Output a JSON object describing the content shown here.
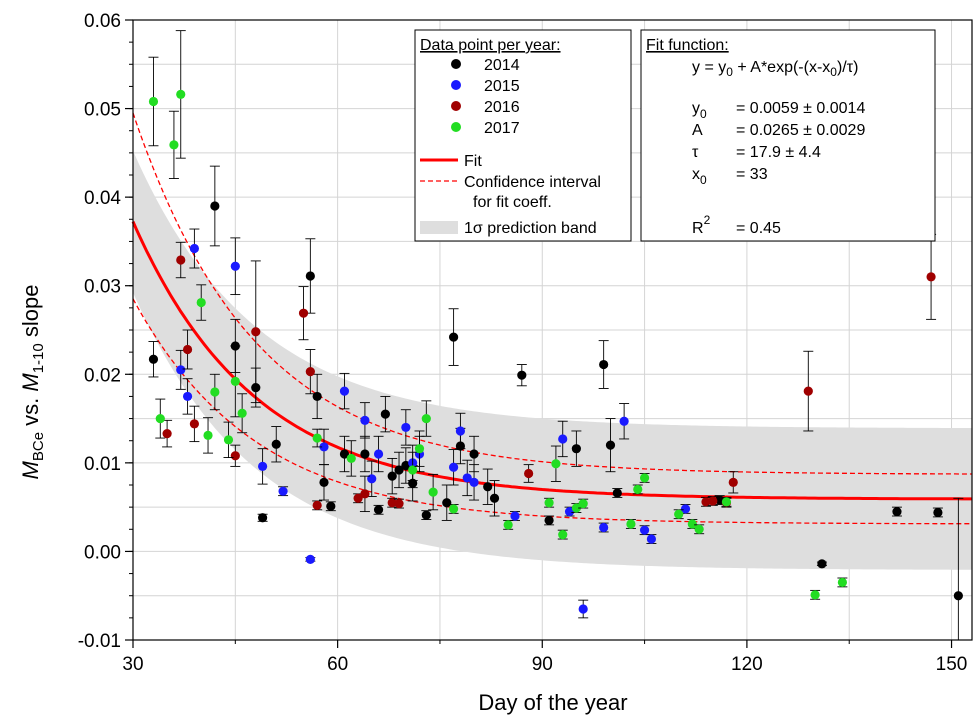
{
  "chart_data": {
    "type": "scatter",
    "xlabel": "Day of the year",
    "ylabel_parts": {
      "m1": "M",
      "sub1": "BCe",
      "vs": " vs. ",
      "m2": "M",
      "sub2": "1-10",
      "rest": " slope"
    },
    "xlim": [
      30,
      153
    ],
    "ylim": [
      -0.01,
      0.06
    ],
    "xticks": [
      30,
      60,
      90,
      120,
      150
    ],
    "xtick_labels": [
      "30",
      "60",
      "90",
      "120",
      "150"
    ],
    "yticks": [
      -0.01,
      0.0,
      0.01,
      0.02,
      0.03,
      0.04,
      0.05,
      0.06
    ],
    "ytick_labels": [
      "-0.01",
      "0.00",
      "0.01",
      "0.02",
      "0.03",
      "0.04",
      "0.05",
      "0.06"
    ],
    "grid": true,
    "colors": {
      "2014": "#000000",
      "2015": "#1a1aff",
      "2016": "#a00000",
      "2017": "#22dd22",
      "fit": "#ff0000",
      "band": "#dedede"
    },
    "fit": {
      "y0": 0.0059,
      "A": 0.0265,
      "tau": 17.9,
      "x0": 33
    },
    "confidence_band": {
      "upper_y0": 0.0087,
      "upper_A": 0.0345,
      "lower_y0": 0.0031,
      "lower_A": 0.0215
    },
    "prediction_band": {
      "halfwidth": 0.008
    },
    "series": [
      {
        "name": "2014",
        "points": [
          [
            33,
            0.0217,
            0.002
          ],
          [
            42,
            0.039,
            0.0045
          ],
          [
            45,
            0.0232,
            0.003
          ],
          [
            48,
            0.0185,
            0.0022
          ],
          [
            49,
            0.0038,
            0.0004
          ],
          [
            51,
            0.0121,
            0.002
          ],
          [
            56,
            0.0311,
            0.0042
          ],
          [
            57,
            0.0175,
            0.0025
          ],
          [
            58,
            0.0078,
            0.002
          ],
          [
            59,
            0.0051,
            0.0005
          ],
          [
            61,
            0.011,
            0.002
          ],
          [
            64,
            0.011,
            0.002
          ],
          [
            66,
            0.0047,
            0.0005
          ],
          [
            67,
            0.0155,
            0.002
          ],
          [
            68,
            0.0085,
            0.002
          ],
          [
            69,
            0.0092,
            0.002
          ],
          [
            70,
            0.0097,
            0.002
          ],
          [
            71,
            0.0077,
            0.002
          ],
          [
            73,
            0.0041,
            0.0005
          ],
          [
            76,
            0.0055,
            0.002
          ],
          [
            77,
            0.0242,
            0.0032
          ],
          [
            78,
            0.0119,
            0.002
          ],
          [
            80,
            0.011,
            0.002
          ],
          [
            82,
            0.0073,
            0.002
          ],
          [
            83,
            0.006,
            0.002
          ],
          [
            87,
            0.0199,
            0.0012
          ],
          [
            91,
            0.0035,
            0.0005
          ],
          [
            95,
            0.0116,
            0.002
          ],
          [
            99,
            0.0211,
            0.0027
          ],
          [
            100,
            0.012,
            0.003
          ],
          [
            101,
            0.0066,
            0.0005
          ],
          [
            116,
            0.0058,
            0.0005
          ],
          [
            131,
            -0.0014,
            0.0002
          ],
          [
            142,
            0.0045,
            0.0005
          ],
          [
            148,
            0.0044,
            0.0005
          ],
          [
            151,
            -0.005,
            0.011
          ]
        ]
      },
      {
        "name": "2015",
        "points": [
          [
            37,
            0.0205,
            0.0022
          ],
          [
            38,
            0.0175,
            0.002
          ],
          [
            39,
            0.0342,
            0.0022
          ],
          [
            45,
            0.0322,
            0.0032
          ],
          [
            49,
            0.0096,
            0.002
          ],
          [
            52,
            0.0068,
            0.0005
          ],
          [
            56,
            -0.0009,
            0.0002
          ],
          [
            58,
            0.0118,
            0.002
          ],
          [
            61,
            0.0181,
            0.002
          ],
          [
            64,
            0.0148,
            0.002
          ],
          [
            65,
            0.0082,
            0.002
          ],
          [
            66,
            0.011,
            0.002
          ],
          [
            70,
            0.014,
            0.002
          ],
          [
            71,
            0.01,
            0.002
          ],
          [
            72,
            0.011,
            0.002
          ],
          [
            77,
            0.0095,
            0.002
          ],
          [
            78,
            0.0136,
            0.002
          ],
          [
            79,
            0.0083,
            0.002
          ],
          [
            80,
            0.0078,
            0.002
          ],
          [
            86,
            0.004,
            0.0005
          ],
          [
            93,
            0.0127,
            0.002
          ],
          [
            94,
            0.0045,
            0.0005
          ],
          [
            96,
            -0.0065,
            0.001
          ],
          [
            99,
            0.0027,
            0.0005
          ],
          [
            102,
            0.0147,
            0.002
          ],
          [
            105,
            0.0024,
            0.0005
          ],
          [
            106,
            0.0014,
            0.0005
          ],
          [
            111,
            0.0048,
            0.0005
          ]
        ]
      },
      {
        "name": "2016",
        "points": [
          [
            35,
            0.0133,
            0.0015
          ],
          [
            37,
            0.0329,
            0.002
          ],
          [
            38,
            0.0228,
            0.0022
          ],
          [
            39,
            0.0144,
            0.002
          ],
          [
            45,
            0.0108,
            0.0012
          ],
          [
            48,
            0.0248,
            0.008
          ],
          [
            55,
            0.0269,
            0.003
          ],
          [
            56,
            0.0203,
            0.0025
          ],
          [
            57,
            0.0052,
            0.0005
          ],
          [
            63,
            0.006,
            0.0005
          ],
          [
            64,
            0.0065,
            0.002
          ],
          [
            68,
            0.0055,
            0.0005
          ],
          [
            69,
            0.0054,
            0.0005
          ],
          [
            88,
            0.0088,
            0.001
          ],
          [
            114,
            0.0056,
            0.0005
          ],
          [
            115,
            0.0057,
            0.0005
          ],
          [
            117,
            0.0055,
            0.0005
          ],
          [
            118,
            0.0078,
            0.0012
          ],
          [
            129,
            0.0181,
            0.0045
          ],
          [
            147,
            0.031,
            0.0048
          ]
        ]
      },
      {
        "name": "2017",
        "points": [
          [
            33,
            0.0508,
            0.005
          ],
          [
            34,
            0.015,
            0.0022
          ],
          [
            36,
            0.0459,
            0.0038
          ],
          [
            37,
            0.0516,
            0.0072
          ],
          [
            40,
            0.0281,
            0.002
          ],
          [
            41,
            0.0131,
            0.002
          ],
          [
            42,
            0.018,
            0.002
          ],
          [
            44,
            0.0126,
            0.002
          ],
          [
            45,
            0.0192,
            0.004
          ],
          [
            46,
            0.0156,
            0.0022
          ],
          [
            57,
            0.0128,
            0.001
          ],
          [
            62,
            0.0105,
            0.002
          ],
          [
            71,
            0.0092,
            0.002
          ],
          [
            72,
            0.0116,
            0.002
          ],
          [
            73,
            0.015,
            0.002
          ],
          [
            74,
            0.0067,
            0.002
          ],
          [
            77,
            0.0048,
            0.0005
          ],
          [
            85,
            0.003,
            0.0005
          ],
          [
            91,
            0.0055,
            0.0005
          ],
          [
            92,
            0.0099,
            0.002
          ],
          [
            93,
            0.0019,
            0.0005
          ],
          [
            95,
            0.0049,
            0.0005
          ],
          [
            96,
            0.0054,
            0.0005
          ],
          [
            103,
            0.0031,
            0.0005
          ],
          [
            104,
            0.007,
            0.0005
          ],
          [
            105,
            0.0083,
            0.0005
          ],
          [
            110,
            0.0042,
            0.0005
          ],
          [
            112,
            0.0031,
            0.0005
          ],
          [
            113,
            0.0025,
            0.0005
          ],
          [
            117,
            0.0056,
            0.0005
          ],
          [
            130,
            -0.0049,
            0.0005
          ],
          [
            134,
            -0.0035,
            0.0005
          ]
        ]
      }
    ],
    "legend_years": {
      "title": "Data point per year:",
      "entries": [
        "2014",
        "2015",
        "2016",
        "2017"
      ],
      "fit_label": "Fit",
      "ci_label_1": "Confidence interval",
      "ci_label_2": "for fit coeff.",
      "band_label": "1σ prediction band"
    },
    "legend_fit": {
      "title": "Fit function:",
      "formula_prefix": "y = y",
      "formula_sub": "0",
      "formula_mid": " + A*exp(-(x-x",
      "formula_sub2": "0",
      "formula_end": ")/τ)",
      "rows": [
        {
          "name": "y",
          "sub": "0",
          "sup": "",
          "value": "=  0.0059 ± 0.0014"
        },
        {
          "name": "A",
          "sub": "",
          "sup": "",
          "value": "=  0.0265 ± 0.0029"
        },
        {
          "name": "τ",
          "sub": "",
          "sup": "",
          "value": "=  17.9 ± 4.4"
        },
        {
          "name": "x",
          "sub": "0",
          "sup": "",
          "value": "=  33"
        },
        {
          "name": "R",
          "sub": "",
          "sup": "2",
          "value": "=  0.45"
        }
      ]
    }
  }
}
